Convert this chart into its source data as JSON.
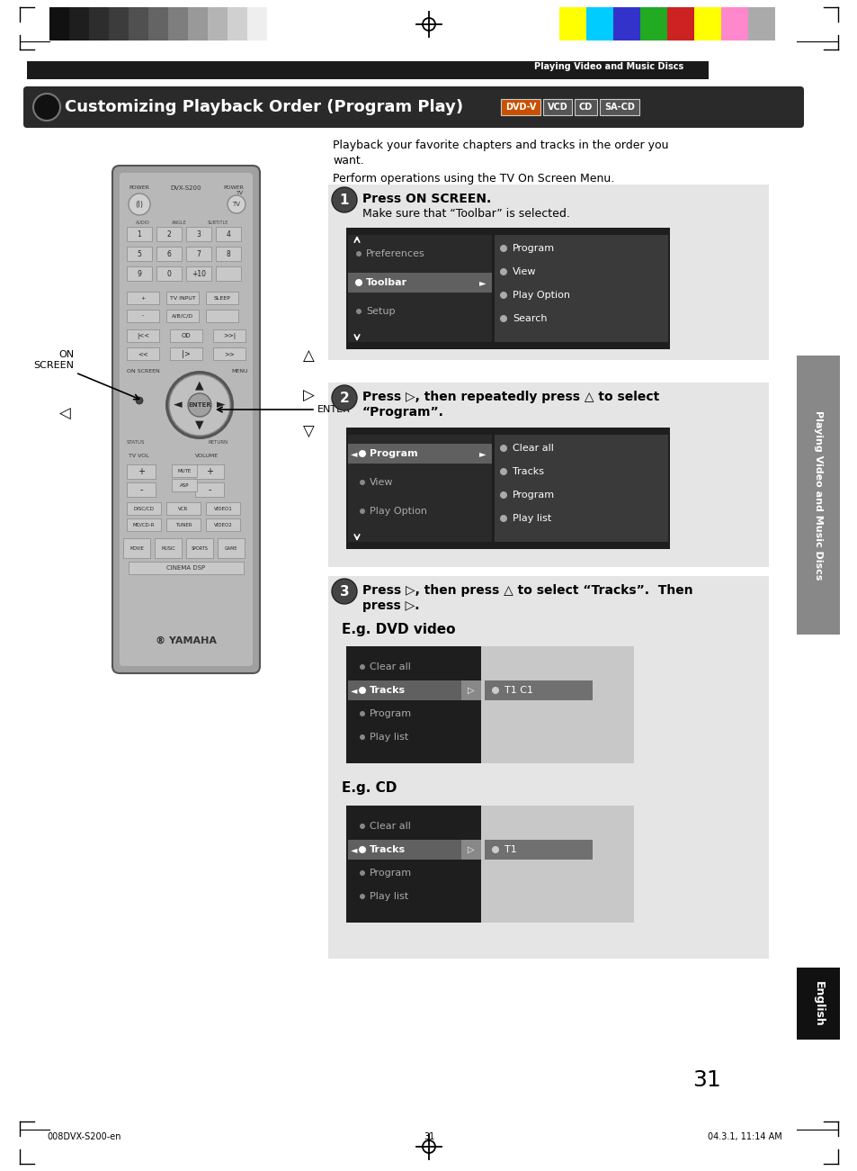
{
  "page_bg": "#ffffff",
  "header_bar_color": "#1a1a1a",
  "header_text": "Playing Video and Music Discs",
  "header_text_color": "#ffffff",
  "title_text": "Customizing Playback Order (Program Play)",
  "title_bg": "#2a2a2a",
  "title_text_color": "#ffffff",
  "intro_line1": "Playback your favorite chapters and tracks in the order you",
  "intro_line2": "want.",
  "intro_line3": "Perform operations using the TV On Screen Menu.",
  "step1_title": "Press ON SCREEN.",
  "step1_sub": "Make sure that “Toolbar” is selected.",
  "step2_title": "Press ▷, then repeatedly press △ to select",
  "step2_title2": "“Program”.",
  "step3_title": "Press ▷, then press △ to select “Tracks”.  Then",
  "step3_title2": "press ▷.",
  "eg_dvd": "E.g. DVD video",
  "eg_cd": "E.g. CD",
  "sidebar_text": "Playing Video and Music Discs",
  "sidebar_bg": "#888888",
  "english_bg": "#111111",
  "english_text": "English",
  "page_number": "31",
  "footer_left": "008DVX-S200-en",
  "footer_center": "31",
  "footer_right": "04.3.1, 11:14 AM",
  "light_gray_bg": "#e5e5e5",
  "menu_dark": "#2a2a2a",
  "menu_selected": "#606060",
  "menu_submenu": "#505050",
  "menu_text": "#ffffff",
  "menu_dim": "#999999",
  "color_bar_bw": [
    "#111111",
    "#1e1e1e",
    "#2d2d2d",
    "#3c3c3c",
    "#505050",
    "#646464",
    "#7e7e7e",
    "#999999",
    "#b4b4b4",
    "#d0d0d0",
    "#eeeeee"
  ],
  "color_bar_rgb": [
    "#ffff00",
    "#00ccff",
    "#3333cc",
    "#22aa22",
    "#cc2222",
    "#ffff00",
    "#ff88cc",
    "#aaaaaa"
  ]
}
